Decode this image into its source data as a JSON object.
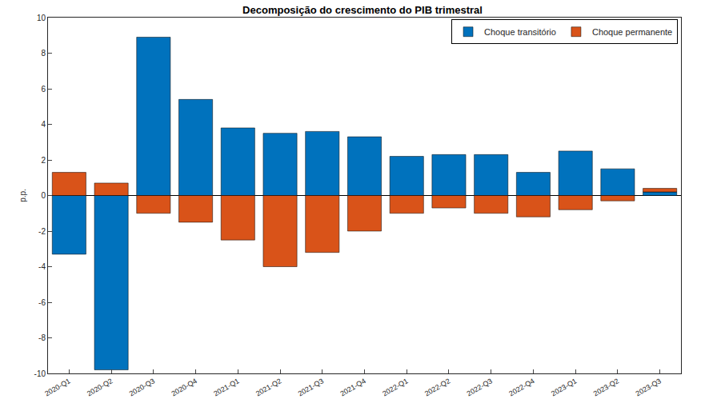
{
  "chart_data": {
    "type": "bar",
    "title": "Decomposição do crescimento do PIB trimestral",
    "y_label": "p.p.",
    "categories": [
      "2020-Q1",
      "2020-Q2",
      "2020-Q3",
      "2020-Q4",
      "2021-Q1",
      "2021-Q2",
      "2021-Q3",
      "2021-Q4",
      "2022-Q1",
      "2022-Q2",
      "2022-Q3",
      "2022-Q4",
      "2023-Q1",
      "2023-Q2",
      "2023-Q3"
    ],
    "series": [
      {
        "name": "Choque transitório",
        "color": "#0072BD",
        "values": [
          -3.3,
          -9.8,
          8.9,
          5.4,
          3.8,
          3.5,
          3.6,
          3.3,
          2.2,
          2.3,
          2.3,
          1.3,
          2.5,
          1.5,
          0.2
        ]
      },
      {
        "name": "Choque permanente",
        "color": "#D95319",
        "values": [
          1.3,
          0.7,
          -1.0,
          -1.5,
          -2.5,
          -4.0,
          -3.2,
          -2.0,
          -1.0,
          -0.7,
          -1.0,
          -1.2,
          -0.8,
          -0.3,
          0.2
        ]
      }
    ],
    "stacked": true,
    "ylim": [
      -10,
      10
    ],
    "yticks": [
      -10,
      -8,
      -6,
      -4,
      -2,
      0,
      2,
      4,
      6,
      8,
      10
    ],
    "grid": false,
    "legend": "upper right"
  }
}
